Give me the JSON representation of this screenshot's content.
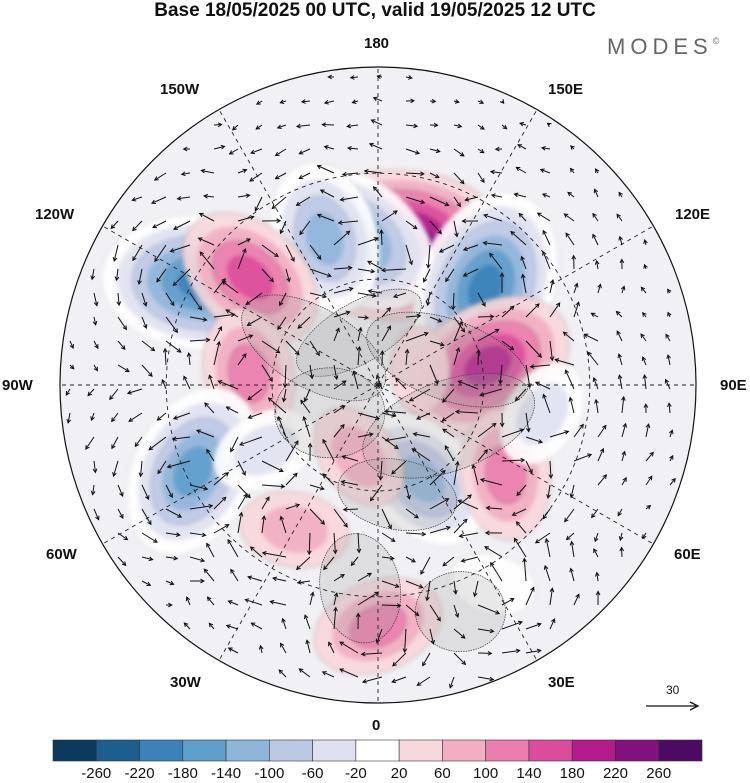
{
  "title": "Base 18/05/2025 00 UTC, valid 19/05/2025 12 UTC",
  "logo": "MODES",
  "logo_mark": "©",
  "longitude_labels": {
    "top": "180",
    "bottom": "0",
    "left": "90W",
    "right": "90E",
    "upper_left": "150W",
    "upper_right": "150E",
    "mid_upper_left": "120W",
    "mid_upper_right": "120E",
    "mid_lower_left": "60W",
    "mid_lower_right": "60E",
    "lower_left": "30W",
    "lower_right": "30E"
  },
  "reference_vector": {
    "value": "30"
  },
  "colorbar": {
    "ticks": [
      "-260",
      "-220",
      "-180",
      "-140",
      "-100",
      "-60",
      "-20",
      "20",
      "60",
      "100",
      "140",
      "180",
      "220",
      "260"
    ],
    "colors": [
      "#0b3a5e",
      "#1c5f8f",
      "#3a82b8",
      "#5f9fcc",
      "#8fb6da",
      "#bcc9e4",
      "#dfe1ef",
      "#ffffff",
      "#f8d8dc",
      "#f2aec2",
      "#ea7fae",
      "#dc4c9c",
      "#b51c8b",
      "#80117f",
      "#4d0a63"
    ]
  },
  "anomaly_centers": [
    {
      "lon_deg": 172,
      "lat": 52,
      "value": 260
    },
    {
      "lon_deg": 189,
      "lat": 50,
      "value": -200
    },
    {
      "lon_deg": 200,
      "lat": 48,
      "value": -140
    },
    {
      "lon_deg": 132,
      "lat": 51,
      "value": -220
    },
    {
      "lon_deg": 100,
      "lat": 60,
      "value": 180
    },
    {
      "lon_deg": 240,
      "lat": 35,
      "value": -220
    },
    {
      "lon_deg": 230,
      "lat": 45,
      "value": 140
    },
    {
      "lon_deg": 265,
      "lat": 55,
      "value": 120
    },
    {
      "lon_deg": 295,
      "lat": 35,
      "value": -180
    },
    {
      "lon_deg": 300,
      "lat": 55,
      "value": -80
    },
    {
      "lon_deg": 330,
      "lat": 45,
      "value": 80
    },
    {
      "lon_deg": 25,
      "lat": 62,
      "value": -140
    },
    {
      "lon_deg": 55,
      "lat": 48,
      "value": 100
    },
    {
      "lon_deg": 80,
      "lat": 45,
      "value": -60
    },
    {
      "lon_deg": 0,
      "lat": 25,
      "value": 100
    },
    {
      "lon_deg": 30,
      "lat": 28,
      "value": -40
    },
    {
      "lon_deg": 345,
      "lat": 70,
      "value": 60
    },
    {
      "lon_deg": 110,
      "lat": 78,
      "value": 40
    }
  ]
}
